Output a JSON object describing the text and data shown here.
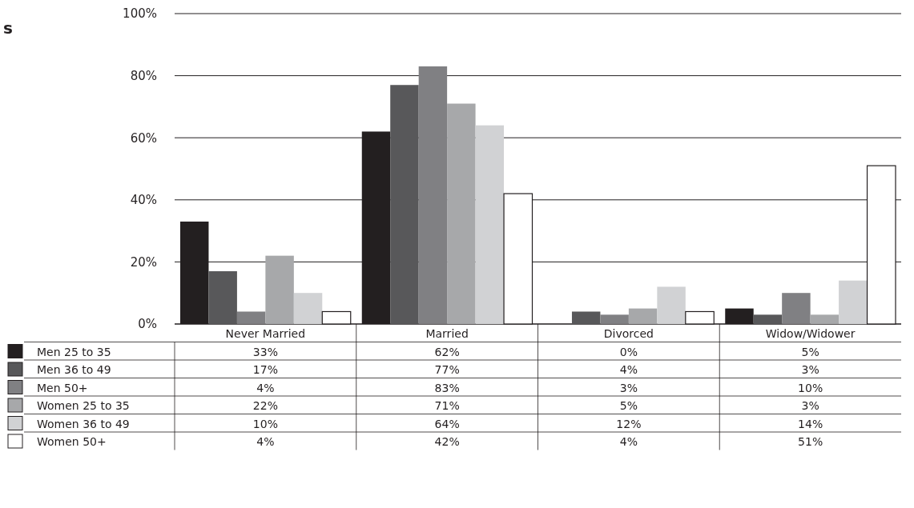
{
  "chart_data": {
    "type": "bar",
    "title": "s",
    "categories": [
      "Never Married",
      "Married",
      "Divorced",
      "Widow/Widower"
    ],
    "series": [
      {
        "name": "Men 25 to 35",
        "color": "#231f20",
        "values": [
          33,
          62,
          0,
          5
        ],
        "value_labels": [
          "33%",
          "62%",
          "0%",
          "5%"
        ]
      },
      {
        "name": "Men 36 to 49",
        "color": "#58585a",
        "values": [
          17,
          77,
          4,
          3
        ],
        "value_labels": [
          "17%",
          "77%",
          "4%",
          "3%"
        ]
      },
      {
        "name": "Men 50+",
        "color": "#808083",
        "values": [
          4,
          83,
          3,
          10
        ],
        "value_labels": [
          "4%",
          "83%",
          "3%",
          "10%"
        ]
      },
      {
        "name": "Women 25 to 35",
        "color": "#a7a8aa",
        "values": [
          22,
          71,
          5,
          3
        ],
        "value_labels": [
          "22%",
          "71%",
          "5%",
          "3%"
        ]
      },
      {
        "name": "Women 36 to 49",
        "color": "#d1d2d4",
        "values": [
          10,
          64,
          12,
          14
        ],
        "value_labels": [
          "10%",
          "64%",
          "12%",
          "14%"
        ]
      },
      {
        "name": "Women 50+",
        "color": "#ffffff",
        "values": [
          4,
          42,
          4,
          51
        ],
        "value_labels": [
          "4%",
          "42%",
          "4%",
          "51%"
        ]
      }
    ],
    "ylim": [
      0,
      100
    ],
    "yticks": [
      {
        "value": 0,
        "label": "0%"
      },
      {
        "value": 20,
        "label": "20%"
      },
      {
        "value": 40,
        "label": "40%"
      },
      {
        "value": 60,
        "label": "60%"
      },
      {
        "value": 80,
        "label": "80%"
      },
      {
        "value": 100,
        "label": "100%"
      }
    ],
    "grid": "y",
    "legend": "bottom left"
  }
}
